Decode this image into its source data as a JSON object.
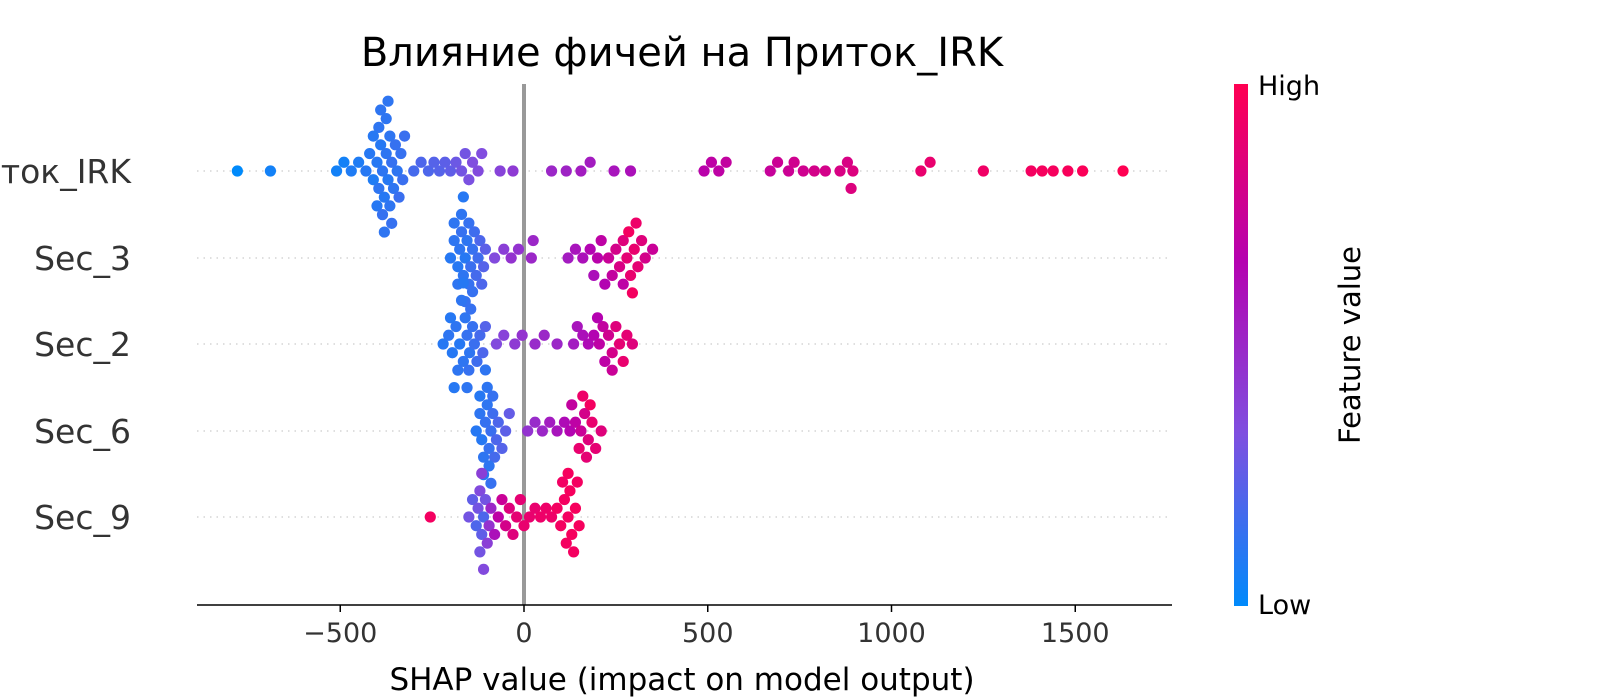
{
  "chart_data": {
    "type": "scatter",
    "subtype": "beeswarm",
    "title": "Влияние фичей на Приток_IRK",
    "xlabel": "SHAP value (impact on model output)",
    "xlim": [
      -900,
      1750
    ],
    "x_ticks": [
      -500,
      0,
      500,
      1000,
      1500
    ],
    "x_tick_labels": [
      "−500",
      "0",
      "500",
      "1000",
      "1500"
    ],
    "features": [
      "Приток_IRK",
      "Sec_3",
      "Sec_2",
      "Sec_6",
      "Sec_9"
    ],
    "feature_labels": [
      "Приток_IRK",
      "Sec_3",
      "Sec_2",
      "Sec_6",
      "Sec_9"
    ],
    "grid": "dotted horizontal per feature",
    "zero_line": true,
    "colorbar": {
      "label": "Feature value",
      "high_label": "High",
      "low_label": "Low",
      "colors": [
        "#008afb",
        "#7f4fe0",
        "#b502b0",
        "#ff0052"
      ]
    },
    "series": [
      {
        "feature": "Приток_IRK",
        "points": [
          {
            "x": -780,
            "v": 0.0
          },
          {
            "x": -690,
            "v": 0.05
          },
          {
            "x": -510,
            "v": 0.05
          },
          {
            "x": -490,
            "v": 0.05
          },
          {
            "x": -470,
            "v": 0.08
          },
          {
            "x": -450,
            "v": 0.08
          },
          {
            "x": -430,
            "v": 0.1
          },
          {
            "x": -420,
            "v": 0.1
          },
          {
            "x": -410,
            "v": 0.08
          },
          {
            "x": -400,
            "v": 0.1
          },
          {
            "x": -395,
            "v": 0.12
          },
          {
            "x": -390,
            "v": 0.1
          },
          {
            "x": -385,
            "v": 0.12
          },
          {
            "x": -380,
            "v": 0.1
          },
          {
            "x": -375,
            "v": 0.12
          },
          {
            "x": -370,
            "v": 0.1
          },
          {
            "x": -365,
            "v": 0.12
          },
          {
            "x": -360,
            "v": 0.14
          },
          {
            "x": -355,
            "v": 0.12
          },
          {
            "x": -350,
            "v": 0.14
          },
          {
            "x": -345,
            "v": 0.12
          },
          {
            "x": -340,
            "v": 0.15
          },
          {
            "x": -335,
            "v": 0.14
          },
          {
            "x": -330,
            "v": 0.15
          },
          {
            "x": -325,
            "v": 0.15
          },
          {
            "x": -400,
            "v": 0.1
          },
          {
            "x": -395,
            "v": 0.12
          },
          {
            "x": -385,
            "v": 0.14
          },
          {
            "x": -375,
            "v": 0.12
          },
          {
            "x": -365,
            "v": 0.12
          },
          {
            "x": -410,
            "v": 0.1
          },
          {
            "x": -380,
            "v": 0.12
          },
          {
            "x": -370,
            "v": 0.12
          },
          {
            "x": -360,
            "v": 0.14
          },
          {
            "x": -390,
            "v": 0.12
          },
          {
            "x": -300,
            "v": 0.18
          },
          {
            "x": -280,
            "v": 0.2
          },
          {
            "x": -260,
            "v": 0.2
          },
          {
            "x": -245,
            "v": 0.22
          },
          {
            "x": -230,
            "v": 0.22
          },
          {
            "x": -215,
            "v": 0.24
          },
          {
            "x": -200,
            "v": 0.25
          },
          {
            "x": -185,
            "v": 0.28
          },
          {
            "x": -170,
            "v": 0.3
          },
          {
            "x": -160,
            "v": 0.3
          },
          {
            "x": -150,
            "v": 0.32
          },
          {
            "x": -140,
            "v": 0.34
          },
          {
            "x": -125,
            "v": 0.35
          },
          {
            "x": -115,
            "v": 0.34
          },
          {
            "x": -65,
            "v": 0.38
          },
          {
            "x": -30,
            "v": 0.42
          },
          {
            "x": 75,
            "v": 0.5
          },
          {
            "x": 115,
            "v": 0.52
          },
          {
            "x": 155,
            "v": 0.55
          },
          {
            "x": 180,
            "v": 0.55
          },
          {
            "x": 245,
            "v": 0.58
          },
          {
            "x": 290,
            "v": 0.6
          },
          {
            "x": 490,
            "v": 0.68
          },
          {
            "x": 510,
            "v": 0.7
          },
          {
            "x": 530,
            "v": 0.7
          },
          {
            "x": 550,
            "v": 0.72
          },
          {
            "x": 670,
            "v": 0.74
          },
          {
            "x": 690,
            "v": 0.76
          },
          {
            "x": 720,
            "v": 0.76
          },
          {
            "x": 735,
            "v": 0.78
          },
          {
            "x": 760,
            "v": 0.78
          },
          {
            "x": 790,
            "v": 0.8
          },
          {
            "x": 820,
            "v": 0.8
          },
          {
            "x": 860,
            "v": 0.82
          },
          {
            "x": 880,
            "v": 0.82
          },
          {
            "x": 895,
            "v": 0.84
          },
          {
            "x": 890,
            "v": 0.84
          },
          {
            "x": 1080,
            "v": 0.9
          },
          {
            "x": 1105,
            "v": 0.9
          },
          {
            "x": 1250,
            "v": 0.93
          },
          {
            "x": 1380,
            "v": 0.95
          },
          {
            "x": 1410,
            "v": 0.96
          },
          {
            "x": 1440,
            "v": 0.96
          },
          {
            "x": 1480,
            "v": 0.97
          },
          {
            "x": 1520,
            "v": 0.98
          },
          {
            "x": 1630,
            "v": 1.0
          }
        ]
      },
      {
        "feature": "Sec_3",
        "points": [
          {
            "x": -200,
            "v": 0.1
          },
          {
            "x": -190,
            "v": 0.12
          },
          {
            "x": -180,
            "v": 0.1
          },
          {
            "x": -175,
            "v": 0.12
          },
          {
            "x": -170,
            "v": 0.14
          },
          {
            "x": -165,
            "v": 0.12
          },
          {
            "x": -160,
            "v": 0.1
          },
          {
            "x": -155,
            "v": 0.12
          },
          {
            "x": -150,
            "v": 0.14
          },
          {
            "x": -145,
            "v": 0.15
          },
          {
            "x": -140,
            "v": 0.14
          },
          {
            "x": -135,
            "v": 0.16
          },
          {
            "x": -130,
            "v": 0.18
          },
          {
            "x": -125,
            "v": 0.16
          },
          {
            "x": -120,
            "v": 0.2
          },
          {
            "x": -115,
            "v": 0.2
          },
          {
            "x": -110,
            "v": 0.22
          },
          {
            "x": -105,
            "v": 0.24
          },
          {
            "x": -180,
            "v": 0.12
          },
          {
            "x": -170,
            "v": 0.12
          },
          {
            "x": -160,
            "v": 0.14
          },
          {
            "x": -150,
            "v": 0.14
          },
          {
            "x": -190,
            "v": 0.12
          },
          {
            "x": -165,
            "v": 0.1
          },
          {
            "x": -80,
            "v": 0.35
          },
          {
            "x": -55,
            "v": 0.4
          },
          {
            "x": -35,
            "v": 0.45
          },
          {
            "x": -15,
            "v": 0.45
          },
          {
            "x": 20,
            "v": 0.5
          },
          {
            "x": 25,
            "v": 0.5
          },
          {
            "x": 120,
            "v": 0.55
          },
          {
            "x": 140,
            "v": 0.58
          },
          {
            "x": 160,
            "v": 0.6
          },
          {
            "x": 180,
            "v": 0.65
          },
          {
            "x": 200,
            "v": 0.68
          },
          {
            "x": 210,
            "v": 0.7
          },
          {
            "x": 230,
            "v": 0.75
          },
          {
            "x": 250,
            "v": 0.8
          },
          {
            "x": 260,
            "v": 0.82
          },
          {
            "x": 270,
            "v": 0.85
          },
          {
            "x": 280,
            "v": 0.88
          },
          {
            "x": 290,
            "v": 0.9
          },
          {
            "x": 300,
            "v": 0.9
          },
          {
            "x": 310,
            "v": 0.88
          },
          {
            "x": 320,
            "v": 0.85
          },
          {
            "x": 330,
            "v": 0.8
          },
          {
            "x": 350,
            "v": 0.75
          },
          {
            "x": 270,
            "v": 0.7
          },
          {
            "x": 240,
            "v": 0.72
          },
          {
            "x": 285,
            "v": 0.95
          },
          {
            "x": 295,
            "v": 0.95
          },
          {
            "x": 305,
            "v": 0.92
          },
          {
            "x": 190,
            "v": 0.6
          },
          {
            "x": 220,
            "v": 0.65
          }
        ]
      },
      {
        "feature": "Sec_2",
        "points": [
          {
            "x": -220,
            "v": 0.1
          },
          {
            "x": -205,
            "v": 0.12
          },
          {
            "x": -195,
            "v": 0.1
          },
          {
            "x": -185,
            "v": 0.12
          },
          {
            "x": -175,
            "v": 0.1
          },
          {
            "x": -165,
            "v": 0.12
          },
          {
            "x": -155,
            "v": 0.14
          },
          {
            "x": -148,
            "v": 0.12
          },
          {
            "x": -140,
            "v": 0.14
          },
          {
            "x": -135,
            "v": 0.15
          },
          {
            "x": -128,
            "v": 0.16
          },
          {
            "x": -120,
            "v": 0.18
          },
          {
            "x": -112,
            "v": 0.2
          },
          {
            "x": -105,
            "v": 0.22
          },
          {
            "x": -200,
            "v": 0.1
          },
          {
            "x": -180,
            "v": 0.12
          },
          {
            "x": -160,
            "v": 0.12
          },
          {
            "x": -150,
            "v": 0.14
          },
          {
            "x": -170,
            "v": 0.12
          },
          {
            "x": -190,
            "v": 0.1
          },
          {
            "x": -145,
            "v": 0.14
          },
          {
            "x": -155,
            "v": 0.12
          },
          {
            "x": -165,
            "v": 0.1
          },
          {
            "x": -140,
            "v": 0.14
          },
          {
            "x": -75,
            "v": 0.35
          },
          {
            "x": -55,
            "v": 0.38
          },
          {
            "x": -25,
            "v": 0.42
          },
          {
            "x": -5,
            "v": 0.45
          },
          {
            "x": 30,
            "v": 0.48
          },
          {
            "x": 55,
            "v": 0.5
          },
          {
            "x": 90,
            "v": 0.5
          },
          {
            "x": 135,
            "v": 0.55
          },
          {
            "x": 145,
            "v": 0.58
          },
          {
            "x": 160,
            "v": 0.6
          },
          {
            "x": 175,
            "v": 0.62
          },
          {
            "x": 190,
            "v": 0.65
          },
          {
            "x": 205,
            "v": 0.7
          },
          {
            "x": 215,
            "v": 0.72
          },
          {
            "x": 230,
            "v": 0.78
          },
          {
            "x": 240,
            "v": 0.8
          },
          {
            "x": 250,
            "v": 0.85
          },
          {
            "x": 260,
            "v": 0.88
          },
          {
            "x": 270,
            "v": 0.9
          },
          {
            "x": 280,
            "v": 0.88
          },
          {
            "x": 295,
            "v": 0.85
          },
          {
            "x": 240,
            "v": 0.75
          },
          {
            "x": 220,
            "v": 0.7
          },
          {
            "x": 200,
            "v": 0.66
          }
        ]
      },
      {
        "feature": "Sec_6",
        "points": [
          {
            "x": -130,
            "v": 0.1
          },
          {
            "x": -120,
            "v": 0.12
          },
          {
            "x": -115,
            "v": 0.1
          },
          {
            "x": -110,
            "v": 0.12
          },
          {
            "x": -105,
            "v": 0.14
          },
          {
            "x": -100,
            "v": 0.12
          },
          {
            "x": -95,
            "v": 0.14
          },
          {
            "x": -90,
            "v": 0.15
          },
          {
            "x": -85,
            "v": 0.16
          },
          {
            "x": -80,
            "v": 0.18
          },
          {
            "x": -75,
            "v": 0.2
          },
          {
            "x": -70,
            "v": 0.2
          },
          {
            "x": -60,
            "v": 0.22
          },
          {
            "x": -50,
            "v": 0.24
          },
          {
            "x": -40,
            "v": 0.26
          },
          {
            "x": -100,
            "v": 0.12
          },
          {
            "x": -110,
            "v": 0.1
          },
          {
            "x": -95,
            "v": 0.12
          },
          {
            "x": -90,
            "v": 0.14
          },
          {
            "x": -120,
            "v": 0.1
          },
          {
            "x": -105,
            "v": 0.12
          },
          {
            "x": -85,
            "v": 0.14
          },
          {
            "x": 10,
            "v": 0.45
          },
          {
            "x": 30,
            "v": 0.48
          },
          {
            "x": 50,
            "v": 0.5
          },
          {
            "x": 70,
            "v": 0.55
          },
          {
            "x": 90,
            "v": 0.58
          },
          {
            "x": 110,
            "v": 0.62
          },
          {
            "x": 125,
            "v": 0.65
          },
          {
            "x": 140,
            "v": 0.7
          },
          {
            "x": 155,
            "v": 0.75
          },
          {
            "x": 165,
            "v": 0.8
          },
          {
            "x": 175,
            "v": 0.85
          },
          {
            "x": 185,
            "v": 0.9
          },
          {
            "x": 195,
            "v": 0.88
          },
          {
            "x": 210,
            "v": 0.85
          },
          {
            "x": 150,
            "v": 0.9
          },
          {
            "x": 160,
            "v": 0.92
          },
          {
            "x": 180,
            "v": 0.95
          },
          {
            "x": 130,
            "v": 0.72
          },
          {
            "x": 170,
            "v": 0.88
          }
        ]
      },
      {
        "feature": "Sec_9",
        "points": [
          {
            "x": -255,
            "v": 0.95
          },
          {
            "x": -150,
            "v": 0.3
          },
          {
            "x": -140,
            "v": 0.25
          },
          {
            "x": -130,
            "v": 0.2
          },
          {
            "x": -125,
            "v": 0.3
          },
          {
            "x": -120,
            "v": 0.35
          },
          {
            "x": -115,
            "v": 0.25
          },
          {
            "x": -110,
            "v": 0.2
          },
          {
            "x": -105,
            "v": 0.3
          },
          {
            "x": -100,
            "v": 0.4
          },
          {
            "x": -95,
            "v": 0.45
          },
          {
            "x": -90,
            "v": 0.5
          },
          {
            "x": -120,
            "v": 0.3
          },
          {
            "x": -115,
            "v": 0.4
          },
          {
            "x": -110,
            "v": 0.35
          },
          {
            "x": -80,
            "v": 0.6
          },
          {
            "x": -70,
            "v": 0.7
          },
          {
            "x": -60,
            "v": 0.75
          },
          {
            "x": -50,
            "v": 0.8
          },
          {
            "x": -40,
            "v": 0.85
          },
          {
            "x": -30,
            "v": 0.85
          },
          {
            "x": -20,
            "v": 0.88
          },
          {
            "x": -10,
            "v": 0.88
          },
          {
            "x": 0,
            "v": 0.9
          },
          {
            "x": 15,
            "v": 0.9
          },
          {
            "x": 30,
            "v": 0.9
          },
          {
            "x": 45,
            "v": 0.92
          },
          {
            "x": 60,
            "v": 0.92
          },
          {
            "x": 75,
            "v": 0.92
          },
          {
            "x": 90,
            "v": 0.95
          },
          {
            "x": 100,
            "v": 0.95
          },
          {
            "x": 110,
            "v": 0.95
          },
          {
            "x": 120,
            "v": 0.95
          },
          {
            "x": 130,
            "v": 0.96
          },
          {
            "x": 140,
            "v": 0.96
          },
          {
            "x": 150,
            "v": 0.96
          },
          {
            "x": 115,
            "v": 0.95
          },
          {
            "x": 125,
            "v": 0.96
          },
          {
            "x": 135,
            "v": 0.95
          },
          {
            "x": 105,
            "v": 0.94
          },
          {
            "x": 145,
            "v": 0.95
          },
          {
            "x": 120,
            "v": 0.96
          }
        ]
      }
    ]
  }
}
